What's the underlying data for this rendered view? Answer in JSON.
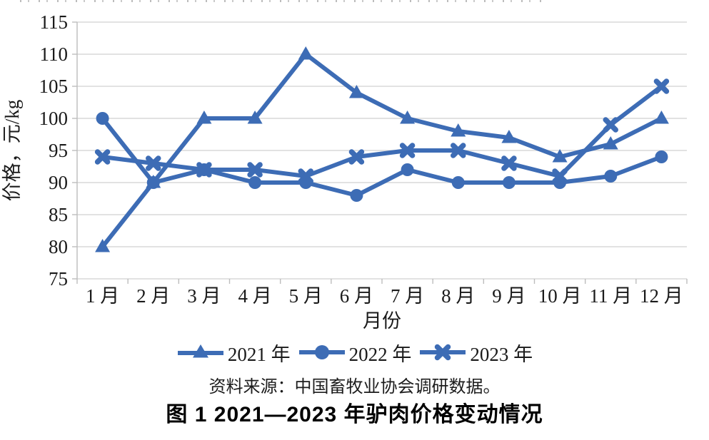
{
  "chart_data": {
    "type": "line",
    "title": "图 1 2021—2023 年驴肉价格变动情况",
    "xlabel": "月份",
    "ylabel": "价格，元/kg",
    "categories": [
      "1 月",
      "2 月",
      "3 月",
      "4 月",
      "5 月",
      "6 月",
      "7 月",
      "8 月",
      "9 月",
      "10 月",
      "11 月",
      "12 月"
    ],
    "ylim": [
      75,
      115
    ],
    "yticks": [
      75,
      80,
      85,
      90,
      95,
      100,
      105,
      110,
      115
    ],
    "grid": "horizontal",
    "legend_position": "bottom",
    "series": [
      {
        "name": "2021 年",
        "marker": "triangle",
        "values": [
          80,
          90,
          100,
          100,
          110,
          104,
          100,
          98,
          97,
          94,
          96,
          100
        ]
      },
      {
        "name": "2022 年",
        "marker": "circle",
        "values": [
          100,
          90,
          92,
          90,
          90,
          88,
          92,
          90,
          90,
          90,
          91,
          94
        ]
      },
      {
        "name": "2023 年",
        "marker": "x",
        "values": [
          94,
          93,
          92,
          92,
          91,
          94,
          95,
          95,
          93,
          91,
          99,
          105
        ]
      }
    ],
    "source_note": "资料来源：中国畜牧业协会调研数据。",
    "colors": {
      "series_line": "#3d6cb5",
      "gridline": "#d9d9d9",
      "axis": "#bdbdbd",
      "text": "#1a1a1a"
    }
  }
}
